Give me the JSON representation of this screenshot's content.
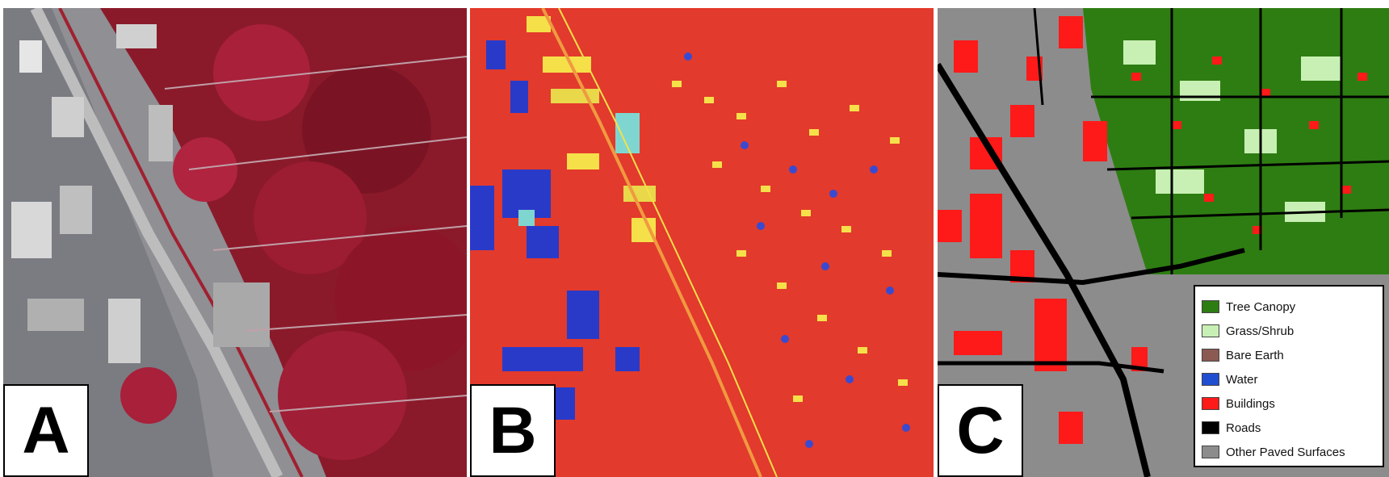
{
  "panels": {
    "a": {
      "letter": "A"
    },
    "b": {
      "letter": "B"
    },
    "c": {
      "letter": "C"
    }
  },
  "legend": {
    "items": [
      {
        "label": "Tree Canopy",
        "color": "#2e7d12"
      },
      {
        "label": "Grass/Shrub",
        "color": "#c8f0b4"
      },
      {
        "label": "Bare Earth",
        "color": "#8b5a52"
      },
      {
        "label": "Water",
        "color": "#1f4fd0"
      },
      {
        "label": "Buildings",
        "color": "#ff1a1a"
      },
      {
        "label": "Roads",
        "color": "#000000"
      },
      {
        "label": "Other Paved Surfaces",
        "color": "#8c8c8c"
      }
    ]
  }
}
